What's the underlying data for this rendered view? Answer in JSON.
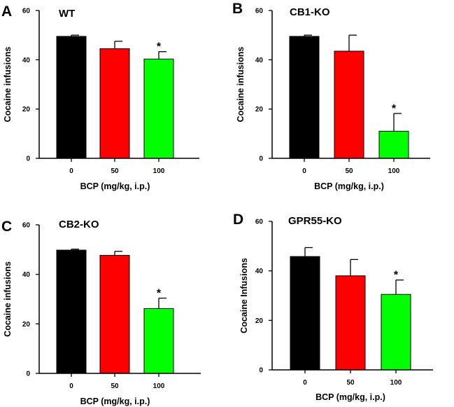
{
  "chart_data": [
    {
      "type": "bar",
      "panel": "A",
      "title": "WT",
      "categories": [
        "0",
        "50",
        "100"
      ],
      "values": [
        49.5,
        44.5,
        40.3
      ],
      "errors": [
        0.5,
        3.0,
        3.0
      ],
      "significance": [
        "",
        "",
        "*"
      ],
      "colors": [
        "#000000",
        "#ff0000",
        "#00ff00"
      ],
      "xlabel": "BCP (mg/kg, i.p.)",
      "ylabel": "Cocaine infusions",
      "ylim": [
        0,
        60
      ],
      "yticks": [
        "0",
        "20",
        "40",
        "60"
      ]
    },
    {
      "type": "bar",
      "panel": "B",
      "title": "CB1-KO",
      "categories": [
        "0",
        "50",
        "100"
      ],
      "values": [
        49.5,
        43.5,
        11.0
      ],
      "errors": [
        0.5,
        6.5,
        7.2
      ],
      "significance": [
        "",
        "",
        "*"
      ],
      "colors": [
        "#000000",
        "#ff0000",
        "#00ff00"
      ],
      "xlabel": "BCP (mg/kg, i.p.)",
      "ylabel": "Cocaine infusions",
      "ylim": [
        0,
        60
      ],
      "yticks": [
        "0",
        "20",
        "40",
        "60"
      ]
    },
    {
      "type": "bar",
      "panel": "C",
      "title": "CB2-KO",
      "categories": [
        "0",
        "50",
        "100"
      ],
      "values": [
        49.8,
        47.7,
        26.2
      ],
      "errors": [
        0.4,
        1.6,
        4.2
      ],
      "significance": [
        "",
        "",
        "*"
      ],
      "colors": [
        "#000000",
        "#ff0000",
        "#00ff00"
      ],
      "xlabel": "BCP (mg/kg, i.p.)",
      "ylabel": "Cocaine infusions",
      "ylim": [
        0,
        60
      ],
      "yticks": [
        "0",
        "20",
        "40",
        "60"
      ]
    },
    {
      "type": "bar",
      "panel": "D",
      "title": "GPR55-KO",
      "categories": [
        "0",
        "50",
        "100"
      ],
      "values": [
        45.8,
        38.0,
        30.5
      ],
      "errors": [
        3.6,
        6.6,
        5.8
      ],
      "significance": [
        "",
        "",
        "*"
      ],
      "colors": [
        "#000000",
        "#ff0000",
        "#00ff00"
      ],
      "xlabel": "BCP (mg/kg, i.p.)",
      "ylabel": "Cocaine Infusions",
      "ylim": [
        0,
        60
      ],
      "yticks": [
        "0",
        "20",
        "40",
        "60"
      ]
    }
  ]
}
